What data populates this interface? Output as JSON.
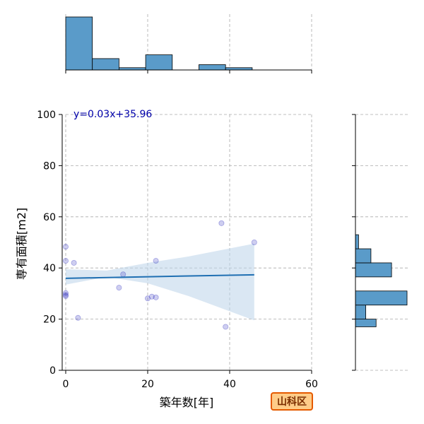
{
  "chart_data": {
    "type": "scatter",
    "xlabel": "築年数[年]",
    "ylabel": "専有面積[m2]",
    "xlim": [
      0,
      60
    ],
    "ylim": [
      0,
      100
    ],
    "x_ticks": [
      0,
      20,
      40,
      60
    ],
    "y_ticks": [
      0,
      20,
      40,
      60,
      80,
      100
    ],
    "grid": true,
    "points": [
      {
        "x": 0,
        "y": 48.3
      },
      {
        "x": 0,
        "y": 42.8
      },
      {
        "x": 0,
        "y": 30.2
      },
      {
        "x": 0,
        "y": 29.5
      },
      {
        "x": 0,
        "y": 29.0
      },
      {
        "x": 2,
        "y": 42.0
      },
      {
        "x": 3,
        "y": 20.5
      },
      {
        "x": 13,
        "y": 32.3
      },
      {
        "x": 14,
        "y": 37.5
      },
      {
        "x": 20,
        "y": 28.1
      },
      {
        "x": 21,
        "y": 28.8
      },
      {
        "x": 22,
        "y": 28.5
      },
      {
        "x": 22,
        "y": 42.8
      },
      {
        "x": 38,
        "y": 57.5
      },
      {
        "x": 39,
        "y": 17.0
      },
      {
        "x": 46,
        "y": 50.0
      }
    ],
    "regression": {
      "equation": "y=0.03x+35.96",
      "slope": 0.03,
      "intercept": 35.96,
      "x_range": [
        0,
        46
      ],
      "confidence_band": [
        {
          "x": 0,
          "lower": 33.5,
          "upper": 39.5
        },
        {
          "x": 10,
          "lower": 36.5,
          "upper": 39.0
        },
        {
          "x": 20,
          "lower": 34.0,
          "upper": 42.0
        },
        {
          "x": 30,
          "lower": 29.0,
          "upper": 44.5
        },
        {
          "x": 46,
          "lower": 19.5,
          "upper": 49.5
        }
      ]
    },
    "marginal_x": {
      "bin_edges": [
        0,
        6.5,
        13,
        19.5,
        26,
        32.5,
        39,
        45.5
      ],
      "counts": [
        7,
        1.5,
        0.3,
        2,
        0,
        0.7,
        0.3
      ]
    },
    "marginal_y": {
      "bin_edges": [
        17,
        20,
        25.5,
        31,
        36.5,
        42,
        47.5,
        53,
        58.5
      ],
      "counts": [
        2,
        1,
        5,
        0,
        3.5,
        1.5,
        0.3,
        0
      ]
    },
    "colors": {
      "point": "#2222bb",
      "line": "#1f6fb2",
      "band": "#bcd4ea",
      "bar": "#5a9bc9",
      "grid": "#aaaaaa",
      "equation": "#0000aa"
    }
  },
  "badge": {
    "label": "山科区",
    "fill": "#ffcc88",
    "border": "#e55a00"
  }
}
